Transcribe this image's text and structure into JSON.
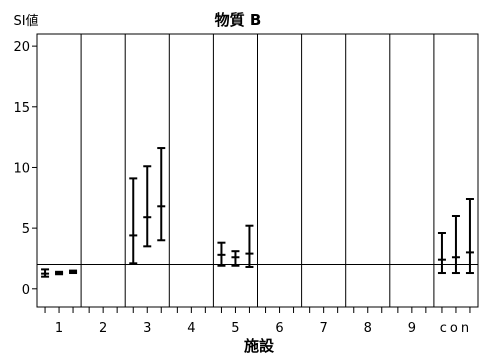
{
  "chart_data": {
    "type": "error-bar",
    "title": "物質 B",
    "ylabel": "SI値",
    "xlabel": "施設",
    "ylim": [
      -1.5,
      21
    ],
    "yticks": [
      0,
      5,
      10,
      15,
      20
    ],
    "reference_line": 2,
    "categories": [
      "1",
      "2",
      "3",
      "4",
      "5",
      "6",
      "7",
      "8",
      "9",
      "con"
    ],
    "ranges": [
      {
        "category": "1",
        "mid": 1.25,
        "low": 1.0,
        "high": 1.6
      },
      {
        "category": "1",
        "mid": 1.3,
        "low": 1.2,
        "high": 1.4
      },
      {
        "category": "1",
        "mid": 1.4,
        "low": 1.3,
        "high": 1.5
      },
      {
        "category": "3",
        "mid": 4.4,
        "low": 2.1,
        "high": 9.1
      },
      {
        "category": "3",
        "mid": 5.9,
        "low": 3.5,
        "high": 10.1
      },
      {
        "category": "3",
        "mid": 6.8,
        "low": 4.0,
        "high": 11.6
      },
      {
        "category": "5",
        "mid": 2.8,
        "low": 1.9,
        "high": 3.8
      },
      {
        "category": "5",
        "mid": 2.6,
        "low": 1.9,
        "high": 3.1
      },
      {
        "category": "5",
        "mid": 2.9,
        "low": 1.8,
        "high": 5.2
      },
      {
        "category": "con",
        "mid": 2.4,
        "low": 1.3,
        "high": 4.6
      },
      {
        "category": "con",
        "mid": 2.6,
        "low": 1.3,
        "high": 6.0
      },
      {
        "category": "con",
        "mid": 3.0,
        "low": 1.3,
        "high": 7.4
      }
    ]
  }
}
